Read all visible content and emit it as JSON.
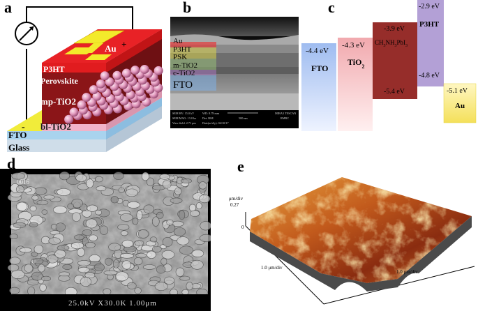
{
  "panels": {
    "a": {
      "label": "a",
      "layers": [
        "P3HT",
        "Perovskite",
        "mp-TiO2",
        "bl-TiO2",
        "FTO",
        "Glass"
      ],
      "electrode": "Au",
      "plus": "+",
      "minus": "-"
    },
    "b": {
      "label": "b",
      "layers": [
        "Au",
        "P3HT",
        "PSK",
        "m-TiO2",
        "c-TiO2",
        "FTO"
      ],
      "info": {
        "sem_hv": "SEM HV: 15.0 kV",
        "sem_mag": "SEM MAG: 13.0 kx",
        "view_field": "View field: 2.71 μm",
        "wd": "WD: 8.78 mm",
        "det": "Det: BSE",
        "date": "Date(m/d/y): 04/10/17",
        "scale": "500 nm",
        "brand": "MIRA3 TESCAN",
        "lab": "RMRC"
      }
    },
    "c": {
      "label": "c",
      "levels": [
        {
          "name": "FTO",
          "top": "-4.4 eV",
          "color": "#bfd3f5"
        },
        {
          "name": "TiO2",
          "top": "-4.3 eV",
          "color": "#f6c9cb"
        },
        {
          "name": "CH3NH3PbI3",
          "top": "-3.9 eV",
          "bottom": "-5.4 eV",
          "color": "#9b2f2c"
        },
        {
          "name": "P3HT",
          "top": "-2.9 eV",
          "bottom": "-4.8 eV",
          "color": "#b8a4d8"
        },
        {
          "name": "Au",
          "top": "-5.1 eV",
          "color": "#fff4a8"
        }
      ]
    },
    "d": {
      "label": "d",
      "caption": "25.0kV X30.0K 1.00μm",
      "tag": "0016"
    },
    "e": {
      "label": "e",
      "z_unit": "μm/div",
      "z_value": "0.27",
      "z_zero": "0",
      "x_label": "1.0 μm/div",
      "y_label": "1.0 μm/div"
    }
  }
}
